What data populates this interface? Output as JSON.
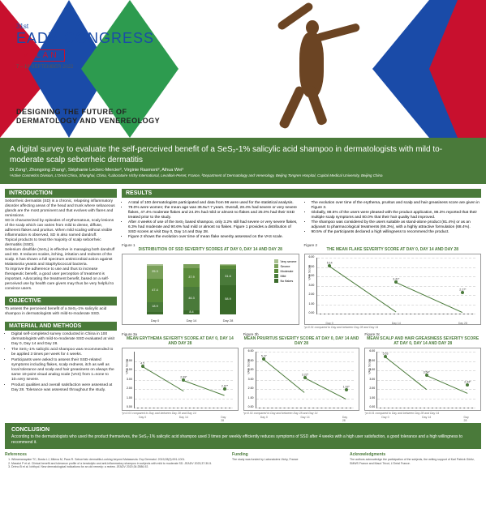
{
  "header": {
    "edition": "31st",
    "brand_pre": "EAD",
    "brand_bold": "V",
    "brand_post": " CONGRESS",
    "city": "MILAN",
    "date": "7 – 10 SEPTEMBER  2022",
    "tagline_l1": "DESIGNING THE FUTURE OF",
    "tagline_l2": "DERMATOLOGY AND VENEREOLOGY",
    "colors": {
      "red": "#c8102e",
      "blue": "#1a4ba8",
      "green": "#2d9b4f"
    }
  },
  "title": "A digital survey to evaluate the self-perceived benefit of a SeS₂-1% salicylic acid shampoo in dermatologists with mild to-moderate scalp seborrheic dermatitis",
  "authors": "Di Zong¹, Zhongxing Zhang¹, Stéphanie Leclerc-Mercier², Virginie Rasmont², Aihua Wei³",
  "affil": "¹Active Cosmetics Division, L'Oréal China, Shanghai, China, ²Laboratoire Vichy International, Levallois-Perret, France, ³Department of Dermatology and Venerology, Beijing Tongren Hospital, Capital Medical University, Beijing China",
  "intro": {
    "h": "INTRODUCTION",
    "body": "Seborrheic dermatitis (SD) is a chronic, relapsing inflammatory disorder affecting areas of the head and trunk where sebaceous glands are the most prominent and that evolves with flares and remissions.\nSD is characterized by episodes of erythematous, scaly lesions of the scalp which can varies from mild to dense, diffuse, adherent flakes and pruritus. When mild scaling without visible inflammation is observed, SD is also named dandruff.\nTopical products to treat the majority of scalp seborrheic dermatitis (SSD).\nSelenium disulfide (SeS₂) is effective in managing both dandruff and SD. It reduces scales, itching, irritation and redness of the scalp. It has shown a full spectrum antimicrobial action against Malassezia yeasts and Staphylococcal bacteria.\nTo improve the adherence to use and thus to increase therapeutic benefit, a good user perception of treatment is important. Advocating the treatment benefit, based on a self-perceived use by health care givers may thus be very helpful to convince users."
  },
  "objective": {
    "h": "OBJECTIVE",
    "body": "To assess the perceived benefit of a SeS₂-1% salicylic acid shampoo in dermatologists with mild-to-moderate SSD."
  },
  "methods": {
    "h": "MATERIAL AND METHODS",
    "items": [
      "Digital self-completed survey conducted in China in 100 dermatologists with mild-to-moderate SSD evaluated at visit Day 0, Day 14 and Day 28.",
      "The SeS₂-1% salicylic acid shampoo was recommended to be applied 3 times per week for 4 weeks.",
      "Participants were asked to assess their SSD-related symptoms including flakes, scalp redness, itch as well as local tolerance and scalp and hair greasiness on always the same 10-point visual analog scale (VAS) from 1=none to 10=very severe.",
      "Product qualities and overall satisfaction were assessed at Day 28. Tolerance was assessed throughout the study."
    ]
  },
  "results": {
    "h": "RESULTS",
    "left": [
      "A total of 100 dermatologists participated and data from 96 were used for the statistical analysis.",
      "79.0% were women; the mean age was 36.9±7.7 years. Overall, 28.4% had severe or very severe flakes, 47.4% moderate flakes and 24.3% had mild or almost no flakes and 25.0% had their SSD treated prior to the study.",
      "After 4 weeks of use of the SeS₂ based shampoo, only 3.2% still had severe or very severe flakes, 6.3% had moderate and 90.6% had mild or almost no flakes. Figure 1 provides a distribution of SSD scores at visit Day 0, Day 14 and Day 28.",
      "Figure 2 shows the evolution over time of mean flake severity assessed on the VAS scale."
    ],
    "right": [
      "The evolution over time of the erythema, pruritus and scalp and hair greasiness score are given in Figure 3.",
      "Globally, 88.5% of the users were pleased with the product application, 86.3% reported that their multiple scalp symptoms and 80.0% that their hair quality had improved.",
      "The shampoo was considered by the users suitable as stand-alone product (81.4%) or as an adjuvant to pharmacological treatments (66.3%), with a highly attractive formulation (68.4%).",
      "90.5% of the participants declared a high willingness to recommend the product."
    ]
  },
  "fig1": {
    "label": "Figure 1",
    "title": "DISTRIBUTION OF SSD SEVERITY SCORES AT DAY 0, DAY 14 AND DAY 28",
    "categories": [
      "Day 0",
      "Day 14",
      "Day 28"
    ],
    "legend": [
      "Very severe",
      "Severe",
      "Moderate",
      "Mild",
      "No flakes"
    ],
    "legend_colors": [
      "#a8c090",
      "#7aa05a",
      "#5a8a3a",
      "#4a7a3a",
      "#3a6a2a"
    ],
    "stacks": [
      {
        "vs": 3.2,
        "sv": 25.3,
        "md": 47.4,
        "ml": 18.9,
        "no": 5.3
      },
      {
        "vs": 0,
        "sv": 7.4,
        "md": 37.9,
        "ml": 46.3,
        "no": 8.4
      },
      {
        "vs": 1.1,
        "sv": 2.1,
        "md": 6.3,
        "ml": 31.6,
        "no": 58.9
      }
    ]
  },
  "fig2": {
    "label": "Figure 2",
    "title": "THE MEAN FLAKE SEVERITY SCORE AT DAY 0, DAY 14 AND DAY 28",
    "ylabel": "VAS Score",
    "ylim": [
      0,
      6
    ],
    "yticks": [
      0,
      1,
      2,
      3,
      4,
      5,
      6
    ],
    "x": [
      "Day 0",
      "Day 14",
      "Day 28"
    ],
    "y": [
      5.14,
      3.41,
      2.27
    ],
    "note": "*p<0.01 compared to Day and between Day 28 and Day 14",
    "color": "#4a7a3a"
  },
  "fig3a": {
    "label": "Figure 3a",
    "title": "MEAN ERYTHEMA SEVERITY SCORE AT DAY 0, DAY 14 AND DAY 28",
    "ylabel": "VAS Score",
    "ylim": [
      0,
      6
    ],
    "yticks": [
      0,
      1,
      2,
      3,
      4,
      5
    ],
    "x": [
      "Day 0",
      "Day 14",
      "Day 28"
    ],
    "y": [
      4.5,
      2.99,
      2.07
    ],
    "note": "*p<0.01 compared to Day and between Day 28 and Day 14",
    "color": "#4a7a3a"
  },
  "fig3b": {
    "label": "Figure 3b",
    "title": "MEAN PRURITUS SEVERITY SCORE AT DAY 0, DAY 14 AND DAY 28",
    "ylabel": "VAS Score",
    "ylim": [
      0,
      6
    ],
    "yticks": [
      0,
      1,
      2,
      3,
      4,
      5,
      6
    ],
    "x": [
      "Day 0",
      "Day 14",
      "Day 28"
    ],
    "y": [
      5.27,
      3.22,
      1.92
    ],
    "note": "*p<0.01 compared to Day and between Day 28 and Day 14",
    "color": "#4a7a3a"
  },
  "fig3c": {
    "label": "Figure 3c",
    "title": "MEAN SCALP AND HAIR GREASINESS SEVERITY SCORE AT DAY 0, DAY 14 AND DAY 28",
    "ylabel": "VAS Score",
    "ylim": [
      0,
      6
    ],
    "yticks": [
      0,
      1,
      2,
      3,
      4,
      5,
      6
    ],
    "x": [
      "Day 0",
      "Day 14",
      "Day 28"
    ],
    "y": [
      5.53,
      3.54,
      2.44
    ],
    "note": "*p<0.01 compared to Day and between Day 28 and Day 14",
    "color": "#4a7a3a"
  },
  "conclusion": {
    "h": "CONCLUSION",
    "body": "According to the dermatologists who used the product themselves, the SeS₂-1% salicylic acid shampoo used 3 times per weekly efficiently reduces symptoms of SSD after 4 weeks with a high user satisfaction, a good tolerance and a high willingness to recommend it."
  },
  "refs": {
    "h": "References",
    "items": [
      "Wikramanayake TC, Borda LJ, Miteva M, Paus R. Seborrheic dermatitis-Looking beyond Malassezia. Exp Dermatol. 2019;28(9):991-1001.",
      "Massiot P et al. Clinical benefit and tolerance profile of a keratolytic and anti-inflammatory shampoo in subjects with mild to moderate SD. JEADV 2023;37:30-5.",
      "Dréno B et al. Ichthyol. New dermatological indications for an old remedy: a review. JEADV 2020;34:2586-92."
    ]
  },
  "funding": {
    "h": "Funding",
    "body": "The study was funded by Laboratoires Vichy, France"
  },
  "ack": {
    "h": "Acknowledgments",
    "body": "The authors acknowledge the participation of the subjects, the writing support of Karl Patrick Göritz, SMWS France and Maud Tricot, L'Oréal France."
  }
}
